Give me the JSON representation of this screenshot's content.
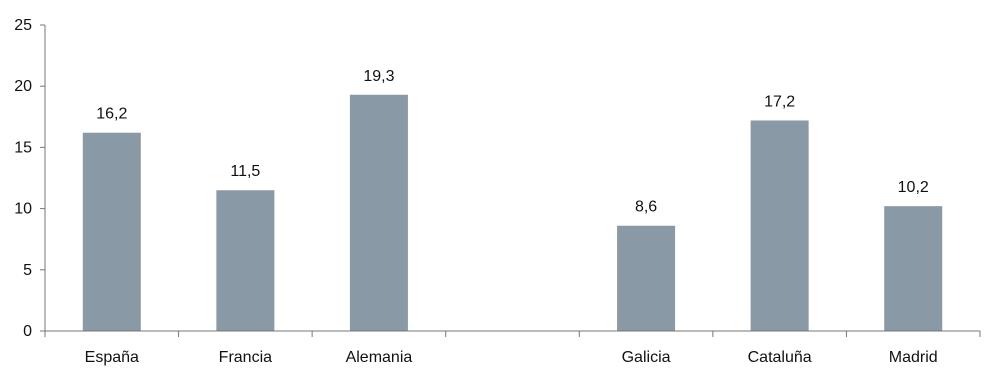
{
  "chart_data": {
    "type": "bar",
    "categories": [
      "España",
      "Francia",
      "Alemania",
      "",
      "Galicia",
      "Cataluña",
      "Madrid"
    ],
    "values": [
      16.2,
      11.5,
      19.3,
      null,
      8.6,
      17.2,
      10.2
    ],
    "data_labels": [
      "16,2",
      "11,5",
      "19,3",
      "",
      "8,6",
      "17,2",
      "10,2"
    ],
    "ylim": [
      0,
      25
    ],
    "y_ticks": [
      0,
      5,
      10,
      15,
      20,
      25
    ],
    "y_tick_labels": [
      "0",
      "5",
      "10",
      "15",
      "20",
      "25"
    ],
    "title": "",
    "xlabel": "",
    "ylabel": "",
    "grid": false,
    "bar_color": "#8a99a6",
    "text_color": "#111111",
    "axis_color": "#777777"
  }
}
